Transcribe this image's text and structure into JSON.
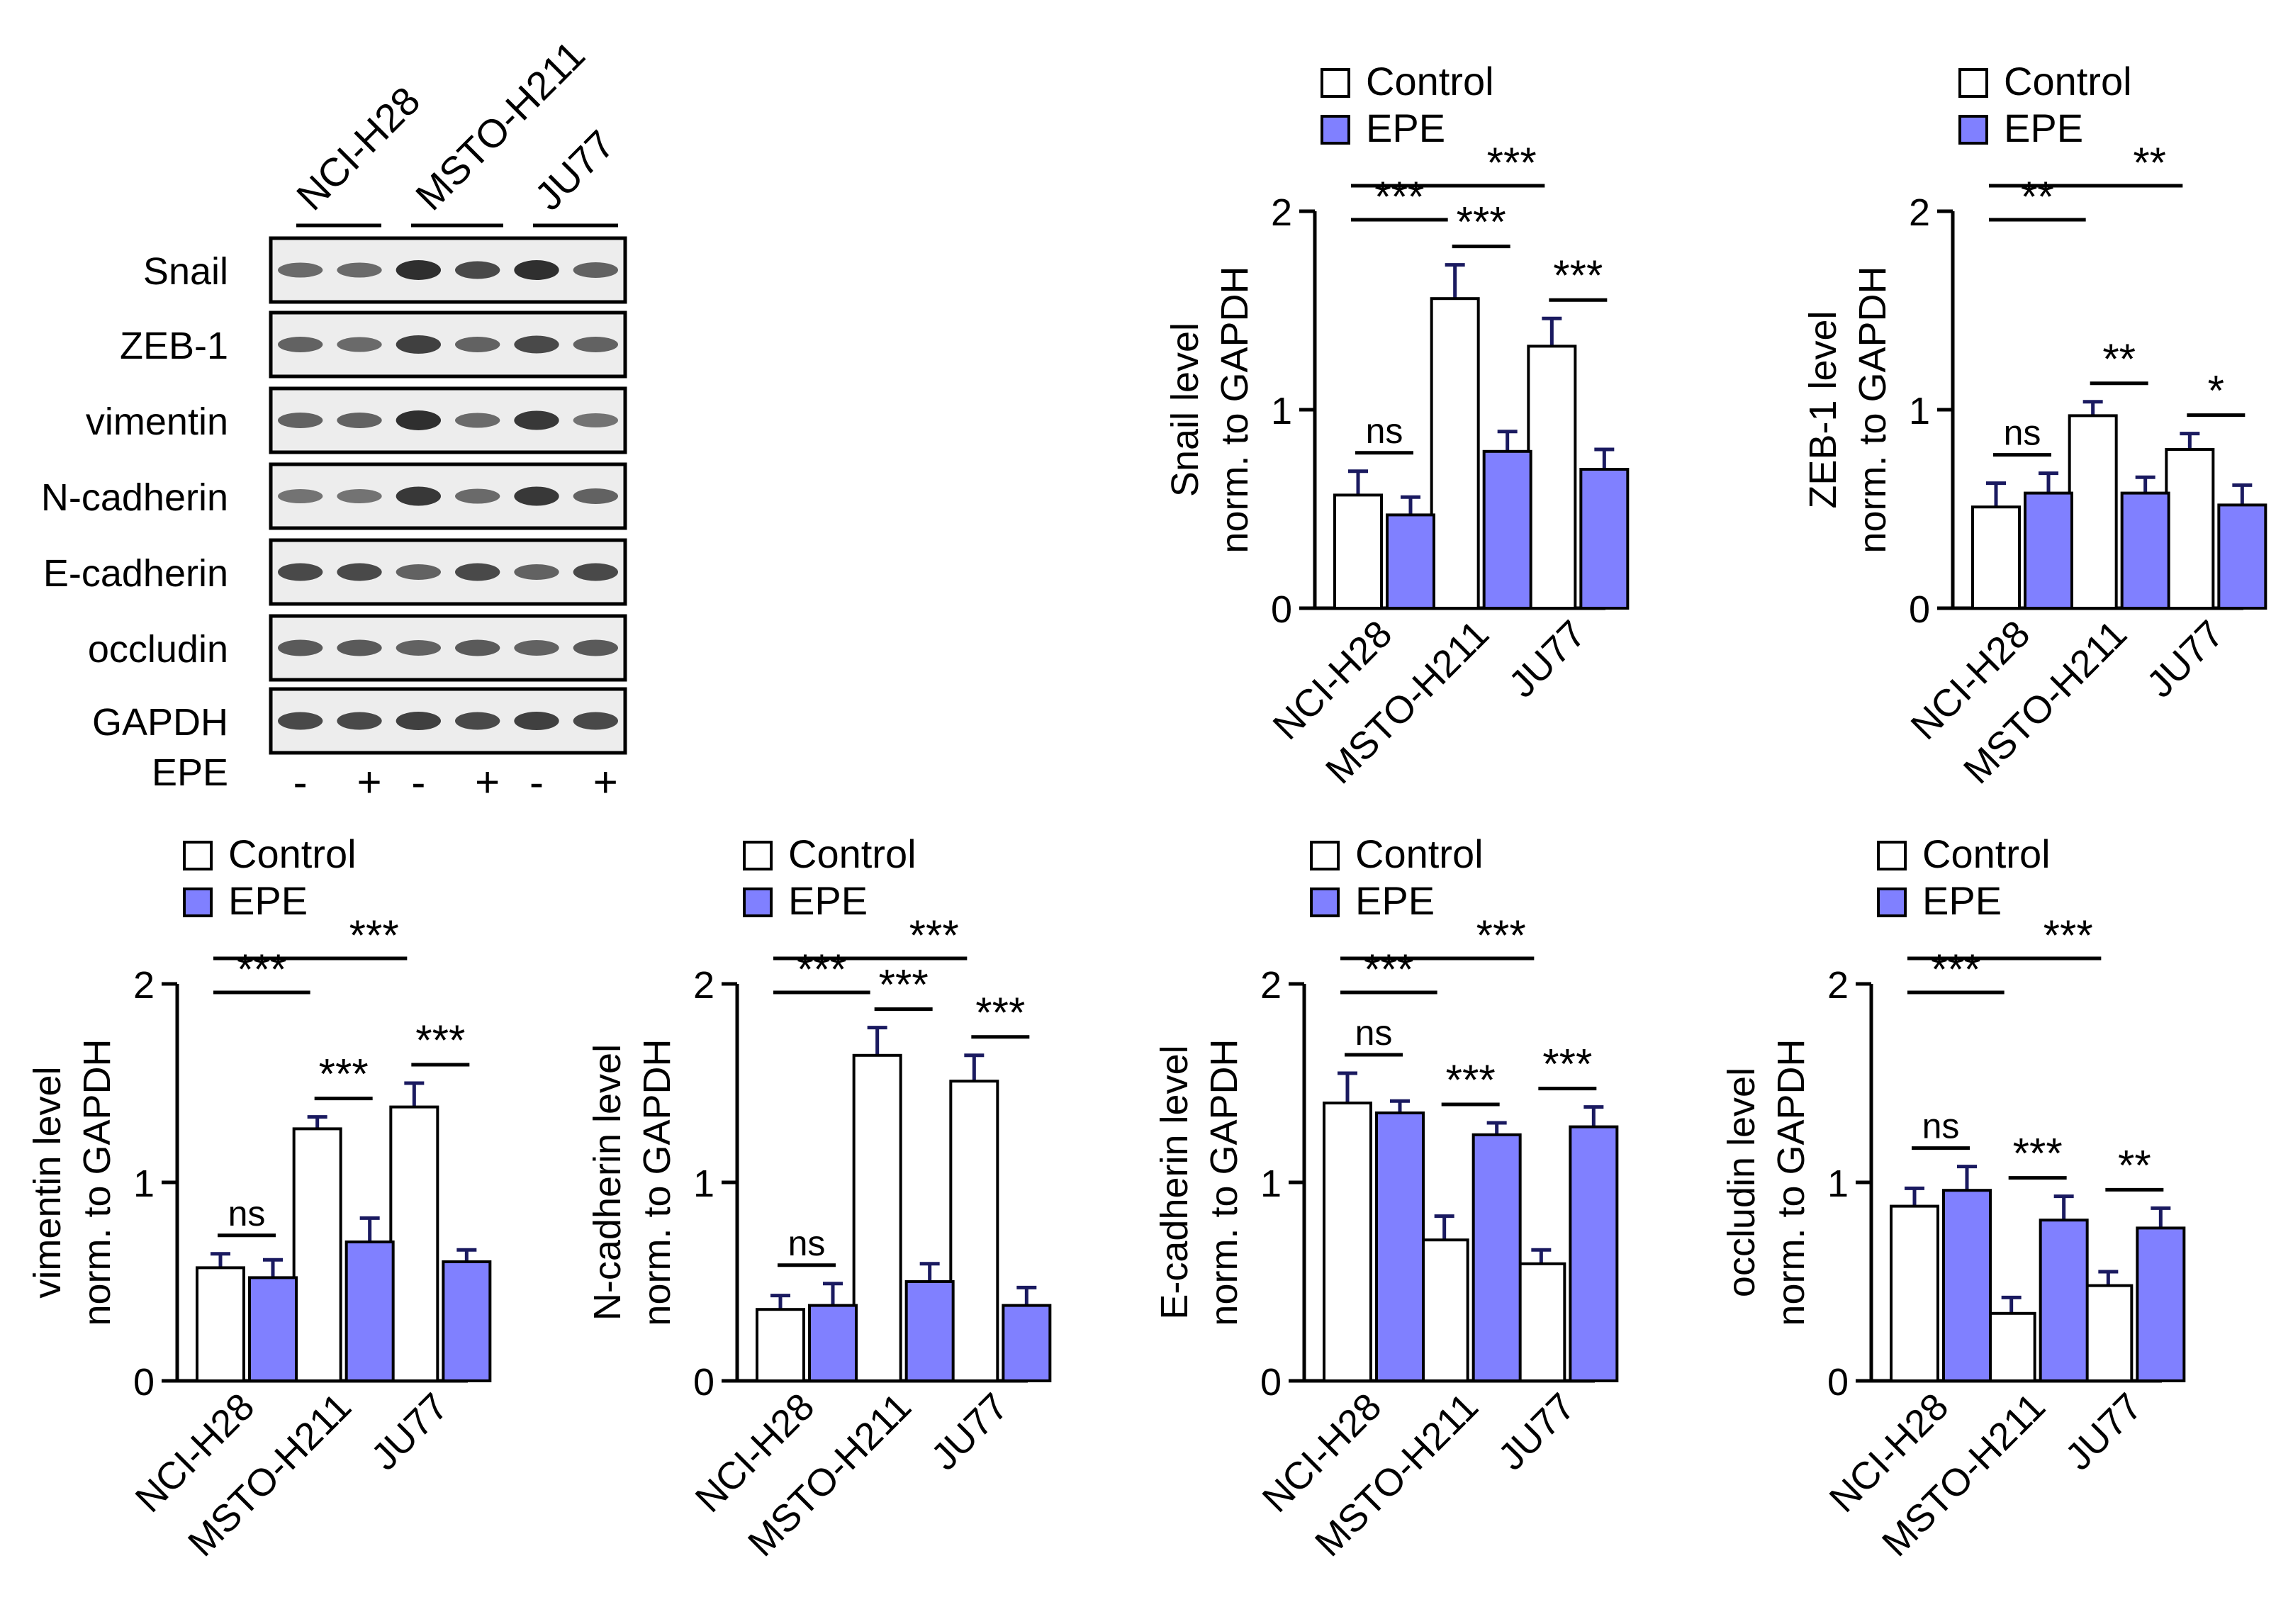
{
  "colors": {
    "control_fill": "#ffffff",
    "epe_fill": "#8080ff",
    "axis": "#000000",
    "error_bar": "#1a1a60"
  },
  "blot": {
    "cell_lines": [
      "NCI-H28",
      "MSTO-H211",
      "JU77"
    ],
    "proteins": [
      "Snail",
      "ZEB-1",
      "vimentin",
      "N-cadherin",
      "E-cadherin",
      "occludin",
      "GAPDH"
    ],
    "treatment_label": "EPE",
    "lanes": [
      "-",
      "+",
      "-",
      "+",
      "-",
      "+"
    ],
    "band_intensity": [
      [
        0.55,
        0.55,
        0.9,
        0.75,
        0.9,
        0.6
      ],
      [
        0.6,
        0.55,
        0.8,
        0.6,
        0.75,
        0.6
      ],
      [
        0.6,
        0.6,
        0.9,
        0.55,
        0.85,
        0.5
      ],
      [
        0.5,
        0.5,
        0.85,
        0.55,
        0.85,
        0.6
      ],
      [
        0.75,
        0.75,
        0.6,
        0.75,
        0.6,
        0.75
      ],
      [
        0.65,
        0.65,
        0.6,
        0.65,
        0.6,
        0.65
      ],
      [
        0.75,
        0.75,
        0.8,
        0.75,
        0.8,
        0.75
      ]
    ]
  },
  "chart_data": [
    {
      "type": "bar",
      "categories": [
        "NCI-H28",
        "MSTO-H211",
        "JU77"
      ],
      "legend": [
        "Control",
        "EPE"
      ],
      "ylabel": [
        "Snail  level",
        "norm. to GAPDH"
      ],
      "ylim": [
        0,
        2
      ],
      "yticks": [
        "0",
        "1",
        "2"
      ],
      "series": [
        {
          "name": "Control",
          "values": [
            0.57,
            1.56,
            1.32
          ],
          "errors": [
            0.12,
            0.17,
            0.14
          ]
        },
        {
          "name": "EPE",
          "values": [
            0.47,
            0.79,
            0.7
          ],
          "errors": [
            0.09,
            0.1,
            0.1
          ]
        }
      ],
      "significance": [
        {
          "from": 0,
          "to": 1,
          "level": 0,
          "label": "***"
        },
        {
          "from": 0,
          "to": 2,
          "level": 1,
          "label": "***"
        },
        {
          "pair": 0,
          "label": "ns"
        },
        {
          "pair": 1,
          "label": "***"
        },
        {
          "pair": 2,
          "label": "***"
        }
      ]
    },
    {
      "type": "bar",
      "categories": [
        "NCI-H28",
        "MSTO-H211",
        "JU77"
      ],
      "legend": [
        "Control",
        "EPE"
      ],
      "ylabel": [
        "ZEB-1 level",
        "norm. to GAPDH"
      ],
      "ylim": [
        0,
        2
      ],
      "yticks": [
        "0",
        "1",
        "2"
      ],
      "series": [
        {
          "name": "Control",
          "values": [
            0.51,
            0.97,
            0.8
          ],
          "errors": [
            0.12,
            0.07,
            0.08
          ]
        },
        {
          "name": "EPE",
          "values": [
            0.58,
            0.58,
            0.52
          ],
          "errors": [
            0.1,
            0.08,
            0.1
          ]
        }
      ],
      "significance": [
        {
          "from": 0,
          "to": 1,
          "level": 0,
          "label": "**"
        },
        {
          "from": 0,
          "to": 2,
          "level": 1,
          "label": "**"
        },
        {
          "pair": 0,
          "label": "ns"
        },
        {
          "pair": 1,
          "label": "**"
        },
        {
          "pair": 2,
          "label": "*"
        }
      ]
    },
    {
      "type": "bar",
      "categories": [
        "NCI-H28",
        "MSTO-H211",
        "JU77"
      ],
      "legend": [
        "Control",
        "EPE"
      ],
      "ylabel": [
        "vimentin level",
        "norm. to GAPDH"
      ],
      "ylim": [
        0,
        2
      ],
      "yticks": [
        "0",
        "1",
        "2"
      ],
      "series": [
        {
          "name": "Control",
          "values": [
            0.57,
            1.27,
            1.38
          ],
          "errors": [
            0.07,
            0.06,
            0.12
          ]
        },
        {
          "name": "EPE",
          "values": [
            0.52,
            0.7,
            0.6
          ],
          "errors": [
            0.09,
            0.12,
            0.06
          ]
        }
      ],
      "significance": [
        {
          "from": 0,
          "to": 1,
          "level": 0,
          "label": "***"
        },
        {
          "from": 0,
          "to": 2,
          "level": 1,
          "label": "***"
        },
        {
          "pair": 0,
          "label": "ns"
        },
        {
          "pair": 1,
          "label": "***"
        },
        {
          "pair": 2,
          "label": "***"
        }
      ]
    },
    {
      "type": "bar",
      "categories": [
        "NCI-H28",
        "MSTO-H211",
        "JU77"
      ],
      "legend": [
        "Control",
        "EPE"
      ],
      "ylabel": [
        "N-cadherin level",
        "norm. to GAPDH"
      ],
      "ylim": [
        0,
        2
      ],
      "yticks": [
        "0",
        "1",
        "2"
      ],
      "series": [
        {
          "name": "Control",
          "values": [
            0.36,
            1.64,
            1.51
          ],
          "errors": [
            0.07,
            0.14,
            0.13
          ]
        },
        {
          "name": "EPE",
          "values": [
            0.38,
            0.5,
            0.38
          ],
          "errors": [
            0.11,
            0.09,
            0.09
          ]
        }
      ],
      "significance": [
        {
          "from": 0,
          "to": 1,
          "level": 0,
          "label": "***"
        },
        {
          "from": 0,
          "to": 2,
          "level": 1,
          "label": "***"
        },
        {
          "pair": 0,
          "label": "ns"
        },
        {
          "pair": 1,
          "label": "***"
        },
        {
          "pair": 2,
          "label": "***"
        }
      ]
    },
    {
      "type": "bar",
      "categories": [
        "NCI-H28",
        "MSTO-H211",
        "JU77"
      ],
      "legend": [
        "Control",
        "EPE"
      ],
      "ylabel": [
        "E-cadherin level",
        "norm. to GAPDH"
      ],
      "ylim": [
        0,
        2
      ],
      "yticks": [
        "0",
        "1",
        "2"
      ],
      "series": [
        {
          "name": "Control",
          "values": [
            1.4,
            0.71,
            0.59
          ],
          "errors": [
            0.15,
            0.12,
            0.07
          ]
        },
        {
          "name": "EPE",
          "values": [
            1.35,
            1.24,
            1.28
          ],
          "errors": [
            0.06,
            0.06,
            0.1
          ]
        }
      ],
      "significance": [
        {
          "from": 0,
          "to": 1,
          "level": 0,
          "label": "***"
        },
        {
          "from": 0,
          "to": 2,
          "level": 1,
          "label": "***"
        },
        {
          "pair": 0,
          "label": "ns"
        },
        {
          "pair": 1,
          "label": "***"
        },
        {
          "pair": 2,
          "label": "***"
        }
      ]
    },
    {
      "type": "bar",
      "categories": [
        "NCI-H28",
        "MSTO-H211",
        "JU77"
      ],
      "legend": [
        "Control",
        "EPE"
      ],
      "ylabel": [
        "occludin  level",
        "norm. to GAPDH"
      ],
      "ylim": [
        0,
        2
      ],
      "yticks": [
        "0",
        "1",
        "2"
      ],
      "series": [
        {
          "name": "Control",
          "values": [
            0.88,
            0.34,
            0.48
          ],
          "errors": [
            0.09,
            0.08,
            0.07
          ]
        },
        {
          "name": "EPE",
          "values": [
            0.96,
            0.81,
            0.77
          ],
          "errors": [
            0.12,
            0.12,
            0.1
          ]
        }
      ],
      "significance": [
        {
          "from": 0,
          "to": 1,
          "level": 0,
          "label": "***"
        },
        {
          "from": 0,
          "to": 2,
          "level": 1,
          "label": "***"
        },
        {
          "pair": 0,
          "label": "ns"
        },
        {
          "pair": 1,
          "label": "***"
        },
        {
          "pair": 2,
          "label": "**"
        }
      ]
    }
  ]
}
